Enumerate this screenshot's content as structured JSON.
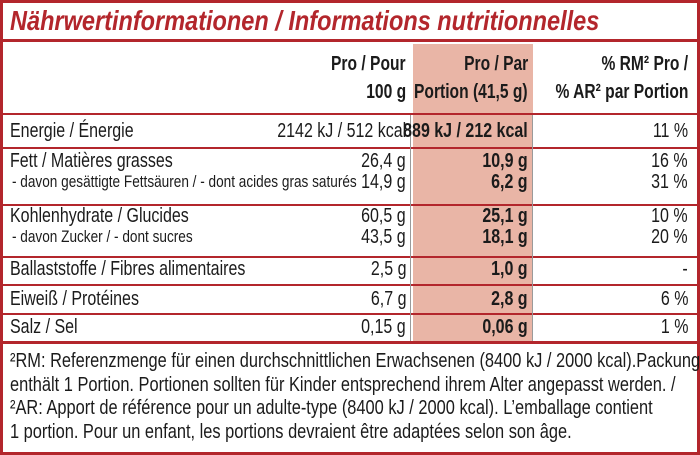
{
  "title": "Nährwertinformationen / Informations nutritionnelles",
  "headers": {
    "per_100g": [
      "Pro / Pour",
      "100 g"
    ],
    "per_portion": [
      "Pro / Par",
      "Portion (41,5 g)"
    ],
    "ri_portion": [
      "% RM² Pro /",
      "% AR² par Portion"
    ]
  },
  "rows": [
    {
      "label": [
        "Energie / Énergie"
      ],
      "per_100g": [
        "2142 kJ / 512 kcal"
      ],
      "per_portion": [
        "889 kJ / 212 kcal"
      ],
      "ri_portion": [
        "11 %"
      ]
    },
    {
      "label": [
        "Fett / Matières grasses",
        "- davon gesättigte Fettsäuren / - dont acides gras saturés"
      ],
      "per_100g": [
        "26,4 g",
        "14,9 g"
      ],
      "per_portion": [
        "10,9 g",
        "6,2 g"
      ],
      "ri_portion": [
        "16 %",
        "31 %"
      ]
    },
    {
      "label": [
        "Kohlenhydrate / Glucides",
        "- davon Zucker / - dont sucres"
      ],
      "per_100g": [
        "60,5 g",
        "43,5 g"
      ],
      "per_portion": [
        "25,1 g",
        "18,1 g"
      ],
      "ri_portion": [
        "10 %",
        "20 %"
      ]
    },
    {
      "label": [
        "Ballaststoffe / Fibres alimentaires"
      ],
      "per_100g": [
        "2,5 g"
      ],
      "per_portion": [
        "1,0 g"
      ],
      "ri_portion": [
        "-"
      ]
    },
    {
      "label": [
        "Eiweiß / Protéines"
      ],
      "per_100g": [
        "6,7 g"
      ],
      "per_portion": [
        "2,8 g"
      ],
      "ri_portion": [
        "6 %"
      ]
    },
    {
      "label": [
        "Salz / Sel"
      ],
      "per_100g": [
        "0,15 g"
      ],
      "per_portion": [
        "0,06 g"
      ],
      "ri_portion": [
        "1 %"
      ]
    }
  ],
  "footnote": [
    "²RM: Referenzmenge für einen durchschnittlichen Erwachsenen (8400 kJ / 2000 kcal).Packung",
    "enthält 1 Portion. Portionen sollten für Kinder entsprechend ihrem Alter angepasst werden. /",
    "²AR: Apport de référence pour un adulte-type (8400 kJ / 2000 kcal). L’emballage contient",
    "1 portion. Pour un enfant, les portions devraient être adaptées selon son âge."
  ]
}
